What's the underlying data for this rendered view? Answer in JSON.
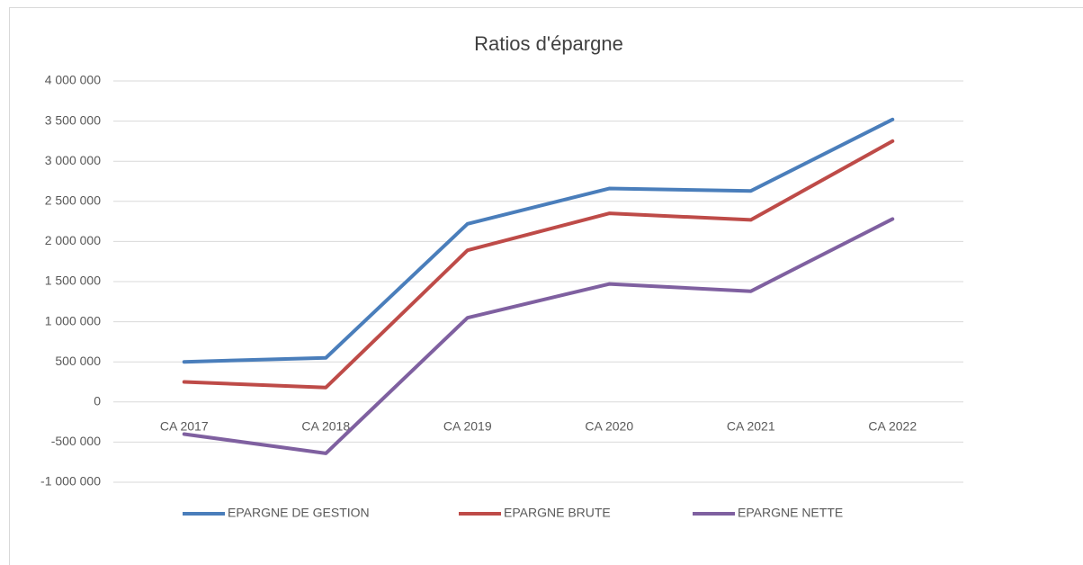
{
  "chart_data": {
    "type": "line",
    "title": "Ratios d'épargne",
    "categories": [
      "CA 2017",
      "CA 2018",
      "CA 2019",
      "CA 2020",
      "CA 2021",
      "CA 2022"
    ],
    "series": [
      {
        "name": "EPARGNE DE GESTION",
        "color": "#4a7ebb",
        "values": [
          500000,
          550000,
          2220000,
          2660000,
          2630000,
          3520000
        ]
      },
      {
        "name": "EPARGNE BRUTE",
        "color": "#be4b48",
        "values": [
          250000,
          180000,
          1890000,
          2350000,
          2270000,
          3250000
        ]
      },
      {
        "name": "EPARGNE NETTE",
        "color": "#7f60a0",
        "values": [
          -400000,
          -640000,
          1050000,
          1470000,
          1380000,
          2280000
        ]
      }
    ],
    "ylim": [
      -1000000,
      4000000
    ],
    "yticks": [
      {
        "value": -1000000,
        "label": "-1 000 000"
      },
      {
        "value": -500000,
        "label": "-500 000"
      },
      0,
      {
        "value": 500000,
        "label": "500 000"
      },
      {
        "value": 1000000,
        "label": "1 000 000"
      },
      {
        "value": 1500000,
        "label": "1 500 000"
      },
      {
        "value": 2000000,
        "label": "2 000 000"
      },
      {
        "value": 2500000,
        "label": "2 500 000"
      },
      {
        "value": 3000000,
        "label": "3 000 000"
      },
      {
        "value": 3500000,
        "label": "3 500 000"
      },
      {
        "value": 4000000,
        "label": "4 000 000"
      }
    ],
    "grid": true,
    "legend": "bottom"
  }
}
